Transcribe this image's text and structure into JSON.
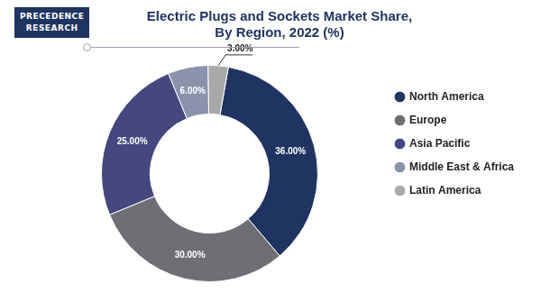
{
  "logo": [
    "PRECEDENCE",
    "RESEARCH"
  ],
  "chart_data": {
    "type": "doughnut",
    "title": [
      "Electric Plugs and Sockets Market Share,",
      "By Region, 2022 (%)"
    ],
    "categories": [
      "North America",
      "Europe",
      "Asia Pacific",
      "Middle East & Africa",
      "Latin America"
    ],
    "values": [
      36,
      30,
      25,
      6,
      3
    ],
    "value_labels": [
      "36.00%",
      "30.00%",
      "25.00%",
      "6.00%",
      "3.00%"
    ],
    "colors": [
      "#1f3461",
      "#6e6f74",
      "#44487f",
      "#8a93ab",
      "#a9a9a9"
    ],
    "legend": "right",
    "data_labels": true
  }
}
